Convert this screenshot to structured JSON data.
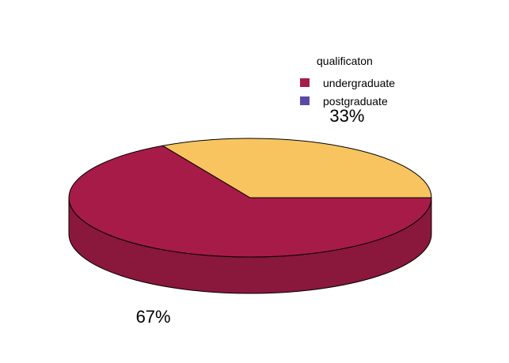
{
  "chart_data": {
    "type": "pie",
    "style": "3d",
    "legend_title": "qualificaton",
    "legend_position": "top-right",
    "slices": [
      {
        "name": "undergraduate",
        "value": 67,
        "label": "67%",
        "color": "#A71B48",
        "side_color": "#8A173C"
      },
      {
        "name": "postgraduate",
        "value": 33,
        "label": "33%",
        "color": "#F8C460",
        "side_color": "#C89C4C"
      }
    ],
    "legend_entries": [
      {
        "name": "undergraduate",
        "swatch_color": "#A71B48"
      },
      {
        "name": "postgraduate",
        "swatch_color": "#5A4AA3"
      }
    ]
  }
}
